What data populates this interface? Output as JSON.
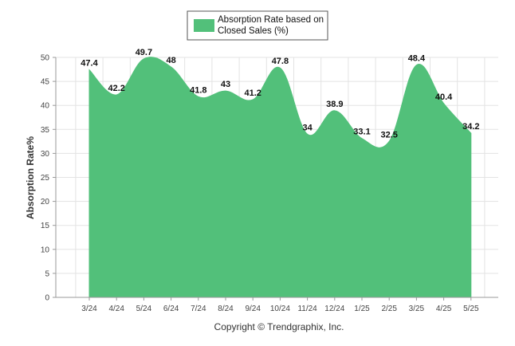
{
  "chart_data": {
    "type": "area",
    "categories": [
      "3/24",
      "4/24",
      "5/24",
      "6/24",
      "7/24",
      "8/24",
      "9/24",
      "10/24",
      "11/24",
      "12/24",
      "1/25",
      "2/25",
      "3/25",
      "4/25",
      "5/25"
    ],
    "series": [
      {
        "name": "Absorption Rate based on Closed Sales (%)",
        "values": [
          47.4,
          42.2,
          49.7,
          48,
          41.8,
          43,
          41.2,
          47.8,
          34,
          38.9,
          33.1,
          32.5,
          48.4,
          40.4,
          34.2
        ]
      }
    ],
    "ylabel": "Absorption Rate%",
    "xlabel": "",
    "ylim": [
      0,
      50
    ],
    "yticks": [
      0,
      5,
      10,
      15,
      20,
      25,
      30,
      35,
      40,
      45,
      50
    ],
    "grid": true,
    "legend_position": "top-center",
    "colors": {
      "series": "#52c07a",
      "grid": "#e3e3e3",
      "axis": "#999999"
    }
  },
  "legend": {
    "line1": "Absorption Rate based on",
    "line2": "Closed Sales (%)"
  },
  "footer": {
    "copyright": "Copyright © Trendgraphix, Inc."
  }
}
